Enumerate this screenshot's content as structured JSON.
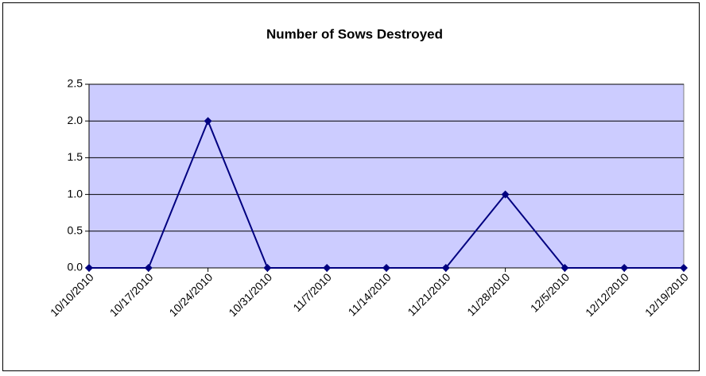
{
  "chart_data": {
    "type": "line",
    "title": "Number of Sows Destroyed",
    "categories": [
      "10/10/2010",
      "10/17/2010",
      "10/24/2010",
      "10/31/2010",
      "11/7/2010",
      "11/14/2010",
      "11/21/2010",
      "11/28/2010",
      "12/5/2010",
      "12/12/2010",
      "12/19/2010"
    ],
    "series": [
      {
        "name": "Number of Sows Destroyed",
        "color": "#000080",
        "values": [
          0,
          0,
          2,
          0,
          0,
          0,
          0,
          1,
          0,
          0,
          0
        ]
      }
    ],
    "ylim": [
      0,
      2.5
    ],
    "yticks": [
      {
        "value": 0,
        "label": "0.0"
      },
      0.5,
      {
        "value": 1,
        "label": "1.0"
      },
      1.5,
      {
        "value": 2,
        "label": "2.0"
      },
      2.5
    ],
    "grid": true,
    "plot_background": "#ccccff"
  }
}
